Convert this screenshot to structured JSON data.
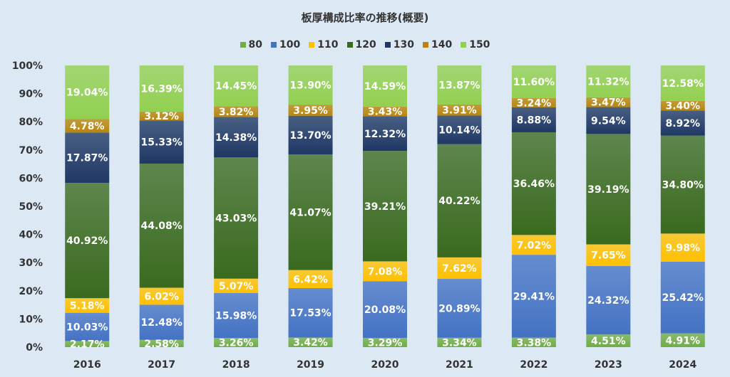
{
  "chart_data": {
    "type": "bar",
    "stacked": true,
    "title": "板厚構成比率の推移(概要)",
    "categories": [
      "2016",
      "2017",
      "2018",
      "2019",
      "2020",
      "2021",
      "2022",
      "2023",
      "2024"
    ],
    "ylim": [
      0,
      100
    ],
    "y_ticks": [
      "0%",
      "10%",
      "20%",
      "30%",
      "40%",
      "50%",
      "60%",
      "70%",
      "80%",
      "90%",
      "100%"
    ],
    "legend_position": "top",
    "grid": false,
    "series": [
      {
        "name": "80",
        "color": "#70ad47",
        "values": [
          2.17,
          2.58,
          3.26,
          3.42,
          3.29,
          3.34,
          3.38,
          4.51,
          4.91
        ],
        "labels": [
          "2.17%",
          "2.58%",
          "3.26%",
          "3.42%",
          "3.29%",
          "3.34%",
          "3.38%",
          "4.51%",
          "4.91%"
        ]
      },
      {
        "name": "100",
        "color": "#4472c4",
        "values": [
          10.03,
          12.48,
          15.98,
          17.53,
          20.08,
          20.89,
          29.41,
          24.32,
          25.42
        ],
        "labels": [
          "10.03%",
          "12.48%",
          "15.98%",
          "17.53%",
          "20.08%",
          "20.89%",
          "29.41%",
          "24.32%",
          "25.42%"
        ]
      },
      {
        "name": "110",
        "color": "#ffc000",
        "values": [
          5.18,
          6.02,
          5.07,
          6.42,
          7.08,
          7.62,
          7.02,
          7.65,
          9.98
        ],
        "labels": [
          "5.18%",
          "6.02%",
          "5.07%",
          "6.42%",
          "7.08%",
          "7.62%",
          "7.02%",
          "7.65%",
          "9.98%"
        ]
      },
      {
        "name": "120",
        "color": "#3a6a1e",
        "values": [
          40.92,
          44.08,
          43.03,
          41.07,
          39.21,
          40.22,
          36.46,
          39.19,
          34.8
        ],
        "labels": [
          "40.92%",
          "44.08%",
          "43.03%",
          "41.07%",
          "39.21%",
          "40.22%",
          "36.46%",
          "39.19%",
          "34.80%"
        ]
      },
      {
        "name": "130",
        "color": "#1f3864",
        "values": [
          17.87,
          15.33,
          14.38,
          13.7,
          12.32,
          10.14,
          8.88,
          9.54,
          8.92
        ],
        "labels": [
          "17.87%",
          "15.33%",
          "14.38%",
          "13.70%",
          "12.32%",
          "10.14%",
          "8.88%",
          "9.54%",
          "8.92%"
        ]
      },
      {
        "name": "140",
        "color": "#b8860b",
        "values": [
          4.78,
          3.12,
          3.82,
          3.95,
          3.43,
          3.91,
          3.24,
          3.47,
          3.4
        ],
        "labels": [
          "4.78%",
          "3.12%",
          "3.82%",
          "3.95%",
          "3.43%",
          "3.91%",
          "3.24%",
          "3.47%",
          "3.40%"
        ]
      },
      {
        "name": "150",
        "color": "#92d050",
        "values": [
          19.04,
          16.39,
          14.45,
          13.9,
          14.59,
          13.87,
          11.6,
          11.32,
          12.58
        ],
        "labels": [
          "19.04%",
          "16.39%",
          "14.45%",
          "13.90%",
          "14.59%",
          "13.87%",
          "11.60%",
          "11.32%",
          "12.58%"
        ]
      }
    ]
  }
}
